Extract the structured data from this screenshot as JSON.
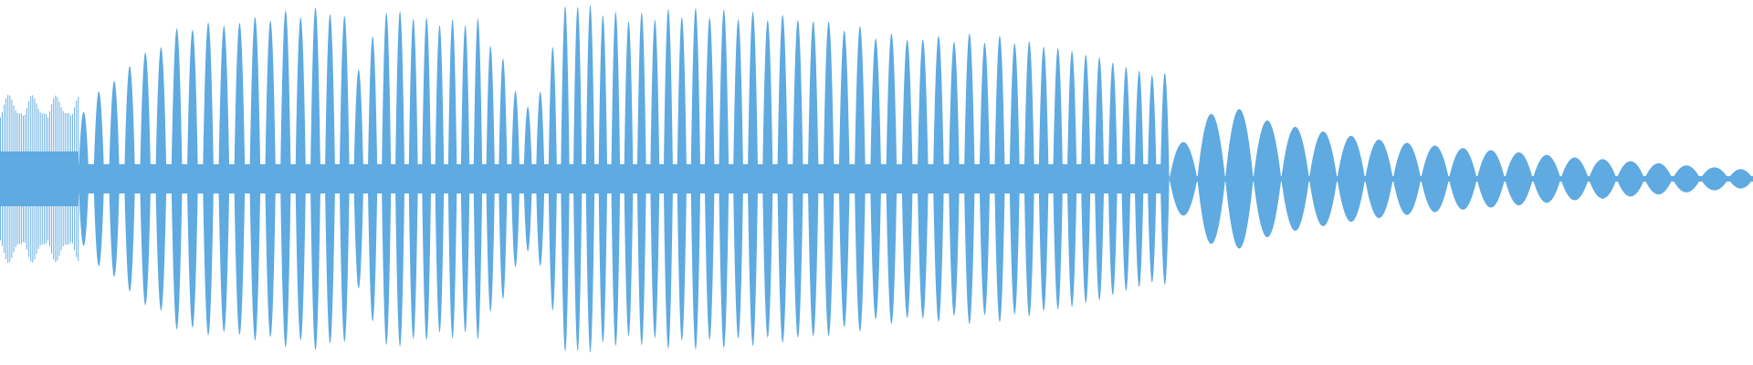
{
  "waveform": {
    "color": "#5eaae1"
  }
}
